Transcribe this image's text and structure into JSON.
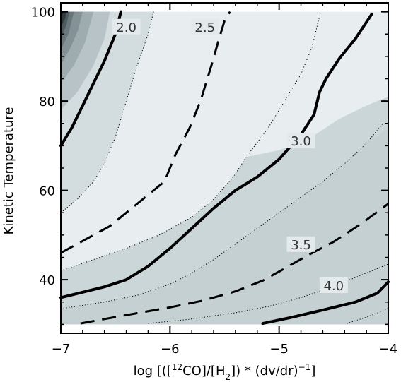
{
  "chart_data": {
    "type": "contour",
    "title": "",
    "xlabel": {
      "prefix": "log [([",
      "sup": "12",
      "mid1": "CO]/[H",
      "sub": "2",
      "mid2": "]) * (dv/dr)",
      "sup2": "−1",
      "suffix": "]"
    },
    "ylabel": "Kinetic Temperature",
    "xlim": [
      -7,
      -4
    ],
    "ylim": [
      28,
      102
    ],
    "data_extent": {
      "x": [
        -7,
        -4
      ],
      "y": [
        30,
        100
      ]
    },
    "xticks": [
      {
        "value": -7,
        "label": "−7"
      },
      {
        "value": -6,
        "label": "−6"
      },
      {
        "value": -5,
        "label": "−5"
      },
      {
        "value": -4,
        "label": "−4"
      }
    ],
    "yticks": [
      {
        "value": 40,
        "label": "40"
      },
      {
        "value": 60,
        "label": "60"
      },
      {
        "value": 80,
        "label": "80"
      },
      {
        "value": 100,
        "label": "100"
      }
    ],
    "colors": {
      "fill_light": "#e8edef",
      "fill_mid": "#d3dddf",
      "fill_mid2": "#cbd6d8",
      "fill_dark": "#c4d0d2",
      "corner_dark": "#0c1418",
      "line": "#000000",
      "label_bg": "#e4eaec"
    },
    "contours": [
      {
        "level": 2.0,
        "style": "solid",
        "label": "2.0",
        "label_at": [
          -6.4,
          96.5
        ],
        "points": [
          [
            -7.0,
            70
          ],
          [
            -6.9,
            74
          ],
          [
            -6.8,
            79
          ],
          [
            -6.7,
            84
          ],
          [
            -6.6,
            89
          ],
          [
            -6.5,
            95
          ],
          [
            -6.45,
            100
          ]
        ]
      },
      {
        "level": 2.25,
        "style": "dotted",
        "points": [
          [
            -7.0,
            55
          ],
          [
            -6.85,
            58
          ],
          [
            -6.7,
            62
          ],
          [
            -6.6,
            66
          ],
          [
            -6.5,
            72
          ],
          [
            -6.4,
            80
          ],
          [
            -6.3,
            88
          ],
          [
            -6.2,
            95
          ],
          [
            -6.15,
            100
          ]
        ]
      },
      {
        "level": 2.5,
        "style": "dashed",
        "label": "2.5",
        "label_at": [
          -5.68,
          96.5
        ],
        "points": [
          [
            -7.0,
            46
          ],
          [
            -6.85,
            48
          ],
          [
            -6.7,
            50
          ],
          [
            -6.55,
            52
          ],
          [
            -6.4,
            55
          ],
          [
            -6.2,
            59
          ],
          [
            -6.05,
            62
          ],
          [
            -5.95,
            68
          ],
          [
            -5.82,
            74
          ],
          [
            -5.72,
            80
          ],
          [
            -5.62,
            88
          ],
          [
            -5.55,
            94
          ],
          [
            -5.5,
            98
          ],
          [
            -5.45,
            100
          ]
        ]
      },
      {
        "level": 2.75,
        "style": "dotted",
        "points": [
          [
            -7.0,
            42
          ],
          [
            -6.7,
            44.5
          ],
          [
            -6.4,
            47
          ],
          [
            -6.1,
            50
          ],
          [
            -5.8,
            54
          ],
          [
            -5.6,
            58
          ],
          [
            -5.42,
            63
          ],
          [
            -5.3,
            67.5
          ],
          [
            -5.1,
            74
          ],
          [
            -4.95,
            80
          ],
          [
            -4.8,
            86
          ],
          [
            -4.7,
            92
          ],
          [
            -4.62,
            100
          ]
        ]
      },
      {
        "level": 3.0,
        "style": "solid",
        "label": "3.0",
        "label_at": [
          -4.8,
          71
        ],
        "points": [
          [
            -7.0,
            36
          ],
          [
            -6.8,
            37.2
          ],
          [
            -6.6,
            38.4
          ],
          [
            -6.4,
            40
          ],
          [
            -6.2,
            43
          ],
          [
            -6.0,
            47
          ],
          [
            -5.8,
            51.5
          ],
          [
            -5.6,
            56
          ],
          [
            -5.4,
            60
          ],
          [
            -5.2,
            63
          ],
          [
            -5.0,
            67
          ],
          [
            -4.8,
            72.5
          ],
          [
            -4.68,
            77
          ],
          [
            -4.63,
            82
          ],
          [
            -4.57,
            85
          ],
          [
            -4.45,
            89.5
          ],
          [
            -4.3,
            94
          ],
          [
            -4.15,
            99.5
          ]
        ]
      },
      {
        "level": 3.25,
        "style": "dotted",
        "points": [
          [
            -7.0,
            33.5
          ],
          [
            -6.6,
            35
          ],
          [
            -6.3,
            36.5
          ],
          [
            -6.0,
            39
          ],
          [
            -5.8,
            41.5
          ],
          [
            -5.6,
            44.5
          ],
          [
            -5.4,
            48
          ],
          [
            -5.2,
            51.5
          ],
          [
            -5.0,
            55
          ],
          [
            -4.8,
            58.5
          ],
          [
            -4.6,
            62
          ],
          [
            -4.4,
            66
          ],
          [
            -4.2,
            70.5
          ],
          [
            -4.05,
            75
          ]
        ]
      },
      {
        "level": 3.5,
        "style": "dashed",
        "label": "3.5",
        "label_at": [
          -4.8,
          47.8
        ],
        "points": [
          [
            -6.82,
            30.2
          ],
          [
            -6.6,
            31.2
          ],
          [
            -6.3,
            32.5
          ],
          [
            -6.0,
            33.8
          ],
          [
            -5.7,
            35.3
          ],
          [
            -5.4,
            37.4
          ],
          [
            -5.15,
            39.8
          ],
          [
            -4.95,
            42.5
          ],
          [
            -4.75,
            45.3
          ],
          [
            -4.5,
            48.5
          ],
          [
            -4.25,
            52.5
          ],
          [
            -4.0,
            57
          ]
        ]
      },
      {
        "level": 3.75,
        "style": "dotted",
        "points": [
          [
            -6.2,
            30.2
          ],
          [
            -5.8,
            31.2
          ],
          [
            -5.4,
            32.6
          ],
          [
            -5.1,
            34
          ],
          [
            -4.8,
            36
          ],
          [
            -4.5,
            38.5
          ],
          [
            -4.25,
            41
          ],
          [
            -4.0,
            43.5
          ]
        ]
      },
      {
        "level": 4.0,
        "style": "solid",
        "label": "4.0",
        "label_at": [
          -4.5,
          38.6
        ],
        "points": [
          [
            -5.15,
            30.2
          ],
          [
            -4.9,
            31.5
          ],
          [
            -4.6,
            33.2
          ],
          [
            -4.3,
            35
          ],
          [
            -4.1,
            37
          ],
          [
            -4.0,
            39.5
          ]
        ]
      },
      {
        "level": 4.25,
        "style": "dotted",
        "points": [
          [
            -4.38,
            30.2
          ],
          [
            -4.2,
            31.6
          ],
          [
            -4.05,
            33
          ],
          [
            -4.0,
            33.6
          ]
        ]
      }
    ],
    "bands": [
      {
        "color_key": "fill_mid",
        "points": [
          [
            -7.0,
            30
          ],
          [
            -7.0,
            55
          ],
          [
            -6.85,
            58
          ],
          [
            -6.7,
            62
          ],
          [
            -6.6,
            66
          ],
          [
            -6.5,
            72
          ],
          [
            -6.4,
            80
          ],
          [
            -6.3,
            88
          ],
          [
            -6.2,
            95
          ],
          [
            -6.15,
            100
          ],
          [
            -6.6,
            100
          ],
          [
            -7.0,
            100
          ]
        ]
      },
      {
        "color_key": "fill_mid2",
        "points": [
          [
            -7.0,
            30
          ],
          [
            -7.0,
            42
          ],
          [
            -6.7,
            44.5
          ],
          [
            -6.4,
            47
          ],
          [
            -6.1,
            50
          ],
          [
            -5.8,
            54
          ],
          [
            -5.6,
            58
          ],
          [
            -5.42,
            63
          ],
          [
            -5.3,
            67.5
          ],
          [
            -5.0,
            69
          ],
          [
            -4.7,
            72
          ],
          [
            -4.45,
            76
          ],
          [
            -4.2,
            79
          ],
          [
            -4.0,
            81
          ],
          [
            -4.0,
            30
          ]
        ]
      },
      {
        "color_key": "fill_dark",
        "points": [
          [
            -7.0,
            30
          ],
          [
            -7.0,
            33.5
          ],
          [
            -6.6,
            35
          ],
          [
            -6.3,
            36.5
          ],
          [
            -6.0,
            39
          ],
          [
            -5.8,
            41.5
          ],
          [
            -5.6,
            44.5
          ],
          [
            -5.4,
            48
          ],
          [
            -5.2,
            51.5
          ],
          [
            -5.0,
            55
          ],
          [
            -4.8,
            58.5
          ],
          [
            -4.6,
            62
          ],
          [
            -4.4,
            66
          ],
          [
            -4.2,
            70.5
          ],
          [
            -4.0,
            74
          ],
          [
            -4.0,
            30
          ]
        ]
      }
    ],
    "corner_levels": [
      {
        "color": "#b7c3c6",
        "points": [
          [
            -7.0,
            78
          ],
          [
            -6.85,
            82
          ],
          [
            -6.7,
            88
          ],
          [
            -6.6,
            94
          ],
          [
            -6.55,
            100
          ],
          [
            -7.0,
            100
          ]
        ]
      },
      {
        "color": "#9eacb0",
        "points": [
          [
            -7.0,
            84
          ],
          [
            -6.88,
            88
          ],
          [
            -6.78,
            93
          ],
          [
            -6.7,
            100
          ],
          [
            -7.0,
            100
          ]
        ]
      },
      {
        "color": "#849297",
        "points": [
          [
            -7.0,
            88
          ],
          [
            -6.91,
            92
          ],
          [
            -6.84,
            96
          ],
          [
            -6.8,
            100
          ],
          [
            -7.0,
            100
          ]
        ]
      },
      {
        "color": "#68777c",
        "points": [
          [
            -7.0,
            91.5
          ],
          [
            -6.93,
            95
          ],
          [
            -6.88,
            100
          ],
          [
            -7.0,
            100
          ]
        ]
      },
      {
        "color": "#4d5b60",
        "points": [
          [
            -7.0,
            94
          ],
          [
            -6.95,
            97
          ],
          [
            -6.92,
            100
          ],
          [
            -7.0,
            100
          ]
        ]
      },
      {
        "color": "#2f3b40",
        "points": [
          [
            -7.0,
            96.5
          ],
          [
            -6.96,
            98.5
          ],
          [
            -6.95,
            100
          ],
          [
            -7.0,
            100
          ]
        ]
      },
      {
        "color": "#0c1418",
        "points": [
          [
            -7.0,
            98.3
          ],
          [
            -6.98,
            100
          ],
          [
            -7.0,
            100
          ]
        ]
      }
    ]
  }
}
